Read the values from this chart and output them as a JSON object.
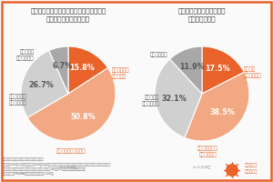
{
  "title_left": "普段の暮らしの中で子どもの感染症対策に\n不安を感じていますか？",
  "title_right": "園での感染症の拡大などは\nありましたか？",
  "pie1_values": [
    15.8,
    50.8,
    26.7,
    6.7
  ],
  "pie1_colors": [
    "#E8622A",
    "#F2A882",
    "#D0D0D0",
    "#A8A8A8"
  ],
  "pie1_labels_inside": [
    "非常に不安を\n感じている\n15.8%",
    "やや不安を感じている\n50.8%",
    "26.7%",
    "6.7%"
  ],
  "pie1_pct": [
    "15.8%",
    "50.8%",
    "26.7%",
    "6.7%"
  ],
  "pie1_text": [
    "非常に不安を\n感じている",
    "やや不安を感じている",
    "あまり不安を\n感じていない",
    "全く不安を\n感じていない"
  ],
  "pie2_values": [
    17.5,
    38.5,
    32.1,
    11.9
  ],
  "pie2_colors": [
    "#E8622A",
    "#F2A882",
    "#D0D0D0",
    "#A8A8A8"
  ],
  "pie2_pct": [
    "17.5%",
    "38.5%",
    "32.1%",
    "11.9%"
  ],
  "pie2_text": [
    "園全体で\n拡大していた",
    "一部のクラスで\n拡大していた",
    "少人数のみ\n感染があった",
    "全くなかった"
  ],
  "n_label": "n=1,004人",
  "bg_color": "#FAFAFA",
  "border_color": "#E8622A",
  "orange_dark": "#E8622A",
  "orange_light": "#F2A882",
  "gray_mid": "#888888",
  "gray_dark": "#555555",
  "title_fontsize": 5.2,
  "label_fontsize": 4.0,
  "pct_fontsize": 5.8,
  "footer_fontsize": 2.2
}
